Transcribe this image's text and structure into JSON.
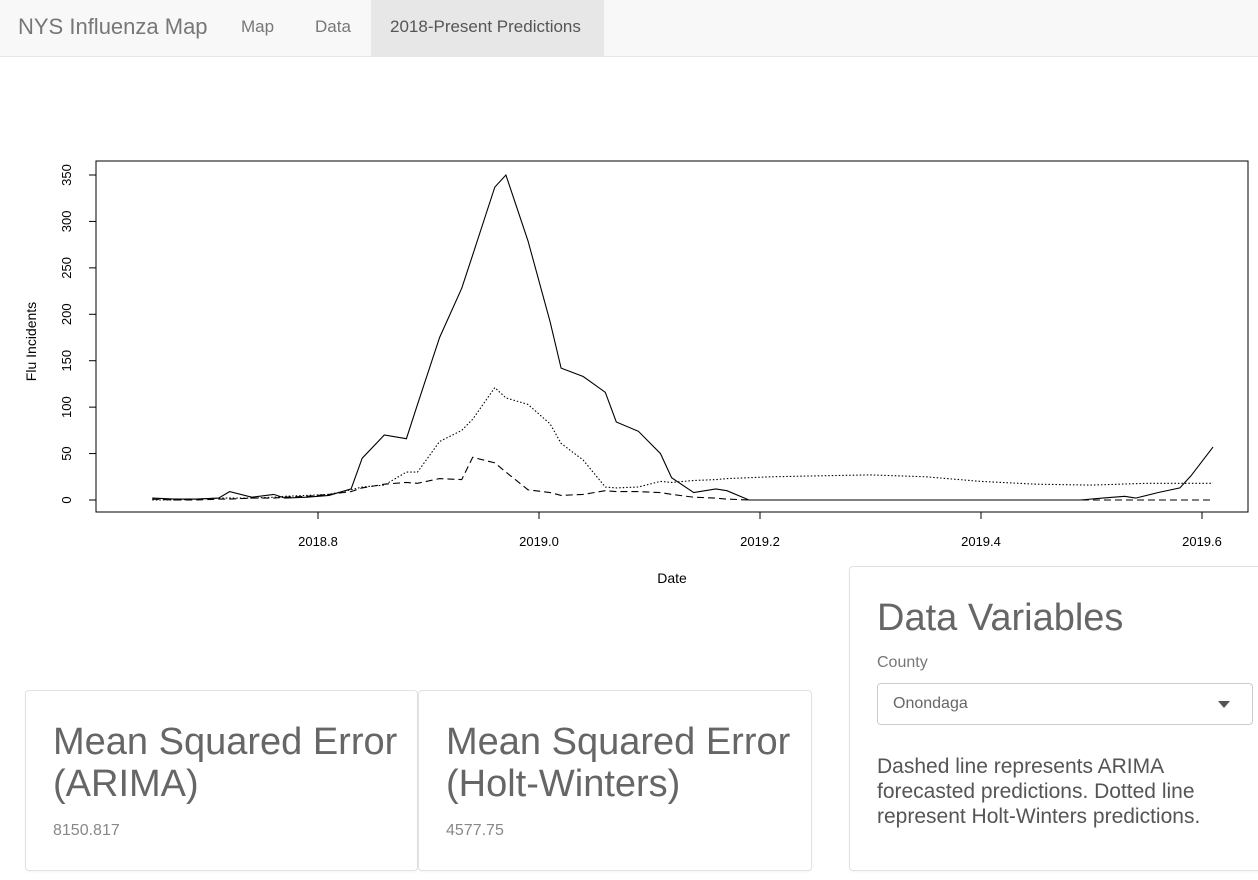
{
  "navbar": {
    "brand": "NYS Influenza Map",
    "tabs": [
      {
        "label": "Map",
        "active": false
      },
      {
        "label": "Data",
        "active": false
      },
      {
        "label": "2018-Present Predictions",
        "active": true
      }
    ]
  },
  "chart_data": {
    "type": "line",
    "title": "",
    "xlabel": "Date",
    "ylabel": "Flu Incidents",
    "xlim": [
      2018.65,
      2019.61
    ],
    "ylim": [
      0,
      350
    ],
    "x_ticks": [
      2018.8,
      2019.0,
      2019.2,
      2019.4,
      2019.6
    ],
    "x_tick_labels": [
      "2018.8",
      "2019.0",
      "2019.2",
      "2019.4",
      "2019.6"
    ],
    "y_ticks": [
      0,
      50,
      100,
      150,
      200,
      250,
      300,
      350
    ],
    "y_tick_labels": [
      "0",
      "50",
      "100",
      "150",
      "200",
      "250",
      "300",
      "350"
    ],
    "grid": false,
    "series": [
      {
        "style": "solid",
        "x": [
          2018.65,
          2018.67,
          2018.69,
          2018.71,
          2018.72,
          2018.74,
          2018.76,
          2018.77,
          2018.79,
          2018.81,
          2018.83,
          2018.84,
          2018.86,
          2018.88,
          2018.89,
          2018.91,
          2018.93,
          2018.94,
          2018.96,
          2018.97,
          2018.99,
          2019.01,
          2019.02,
          2019.04,
          2019.06,
          2019.07,
          2019.09,
          2019.11,
          2019.12,
          2019.14,
          2019.16,
          2019.17,
          2019.19,
          2019.21,
          2019.25,
          2019.3,
          2019.35,
          2019.4,
          2019.45,
          2019.49,
          2019.51,
          2019.53,
          2019.54,
          2019.56,
          2019.58,
          2019.59,
          2019.61
        ],
        "values": [
          2,
          1,
          1,
          2,
          9,
          3,
          6,
          2,
          3,
          5,
          12,
          45,
          70,
          66,
          103,
          175,
          228,
          264,
          337,
          350,
          279,
          192,
          142,
          133,
          116,
          84,
          74,
          50,
          24,
          8,
          12,
          10,
          0,
          0,
          0,
          0,
          0,
          0,
          0,
          0,
          2,
          4,
          2,
          8,
          13,
          26,
          57
        ]
      },
      {
        "style": "dashed",
        "x": [
          2018.65,
          2018.67,
          2018.69,
          2018.71,
          2018.72,
          2018.74,
          2018.76,
          2018.77,
          2018.79,
          2018.81,
          2018.83,
          2018.84,
          2018.86,
          2018.88,
          2018.89,
          2018.91,
          2018.93,
          2018.94,
          2018.96,
          2018.97,
          2018.99,
          2019.01,
          2019.02,
          2019.04,
          2019.06,
          2019.07,
          2019.09,
          2019.11,
          2019.12,
          2019.14,
          2019.16,
          2019.17,
          2019.19,
          2019.25,
          2019.3,
          2019.35,
          2019.4,
          2019.45,
          2019.5,
          2019.55,
          2019.61
        ],
        "values": [
          1,
          0,
          0,
          1,
          1,
          2,
          2,
          3,
          4,
          6,
          9,
          13,
          17,
          19,
          18,
          23,
          22,
          46,
          40,
          30,
          11,
          8,
          5,
          6,
          10,
          9,
          9,
          8,
          6,
          3,
          2,
          1,
          0,
          0,
          0,
          0,
          0,
          0,
          0,
          0,
          0
        ]
      },
      {
        "style": "dotted",
        "x": [
          2018.65,
          2018.67,
          2018.69,
          2018.71,
          2018.72,
          2018.74,
          2018.76,
          2018.77,
          2018.79,
          2018.81,
          2018.83,
          2018.84,
          2018.86,
          2018.88,
          2018.89,
          2018.91,
          2018.93,
          2018.94,
          2018.96,
          2018.97,
          2018.99,
          2019.01,
          2019.02,
          2019.04,
          2019.06,
          2019.07,
          2019.09,
          2019.11,
          2019.12,
          2019.14,
          2019.16,
          2019.17,
          2019.19,
          2019.21,
          2019.25,
          2019.3,
          2019.35,
          2019.4,
          2019.45,
          2019.5,
          2019.55,
          2019.61
        ],
        "values": [
          0,
          0,
          1,
          2,
          2,
          2,
          3,
          4,
          5,
          6,
          11,
          14,
          16,
          30,
          30,
          63,
          75,
          87,
          121,
          110,
          103,
          82,
          61,
          43,
          14,
          13,
          14,
          20,
          19,
          21,
          22,
          23,
          24,
          25,
          26,
          27,
          25,
          20,
          17,
          16,
          18,
          18
        ]
      }
    ]
  },
  "cards": {
    "arima": {
      "title": "Mean Squared Error (ARIMA)",
      "value": "8150.817"
    },
    "holt": {
      "title": "Mean Squared Error (Holt-Winters)",
      "value": "4577.75"
    }
  },
  "data_variables": {
    "title": "Data Variables",
    "county_label": "County",
    "county_value": "Onondaga",
    "note": "Dashed line represents ARIMA forecasted predictions. Dotted line represent Holt-Winters predictions."
  }
}
